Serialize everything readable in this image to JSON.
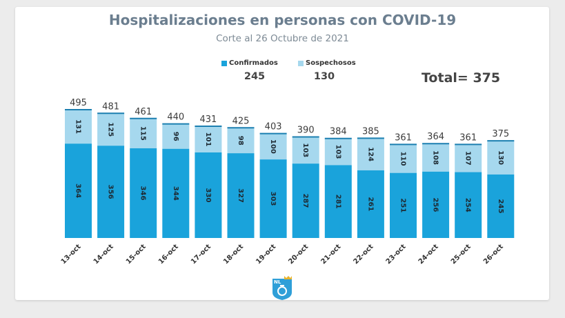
{
  "title": "Hospitalizaciones en personas con COVID-19",
  "subtitle": "Corte al 26 Octubre de 2021",
  "legend": {
    "confirmed_label": "Confirmados",
    "suspected_label": "Sospechosos",
    "confirmed_total": "245",
    "suspected_total": "130"
  },
  "grand_total": "Total= 375",
  "logo_text": "NL",
  "colors": {
    "confirmed": "#1aa3db",
    "suspected": "#a6d8ee",
    "title": "#6b7e8f"
  },
  "chart_data": {
    "type": "bar",
    "stacked": true,
    "categories": [
      "13-oct",
      "14-oct",
      "15-oct",
      "16-oct",
      "17-oct",
      "18-oct",
      "19-oct",
      "20-oct",
      "21-oct",
      "22-oct",
      "23-oct",
      "24-oct",
      "25-oct",
      "26-oct"
    ],
    "series": [
      {
        "name": "Confirmados",
        "values": [
          364,
          356,
          346,
          344,
          330,
          327,
          303,
          287,
          281,
          261,
          251,
          256,
          254,
          245
        ]
      },
      {
        "name": "Sospechosos",
        "values": [
          131,
          125,
          115,
          96,
          101,
          98,
          100,
          103,
          103,
          124,
          110,
          108,
          107,
          130
        ]
      }
    ],
    "totals": [
      495,
      481,
      461,
      440,
      431,
      425,
      403,
      390,
      384,
      385,
      361,
      364,
      361,
      375
    ],
    "legend_position": "top-center",
    "grid": false
  }
}
